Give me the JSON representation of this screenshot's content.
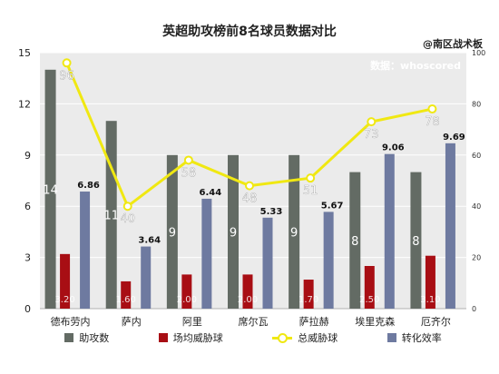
{
  "title": "英超助攻榜前8名球员数据对比",
  "watermark": "@南区战术板",
  "source_note": "数据：whoscored",
  "chart_data": {
    "type": "bar",
    "categories": [
      "德布劳内",
      "萨内",
      "阿里",
      "席尔瓦",
      "萨拉赫",
      "埃里克森",
      "厄齐尔"
    ],
    "left_axis": {
      "ylim": [
        0,
        15
      ],
      "ticks": [
        0,
        3,
        6,
        9,
        12,
        15
      ]
    },
    "right_axis": {
      "ylim": [
        0,
        100
      ],
      "ticks": [
        0,
        20,
        40,
        60,
        80,
        100
      ]
    },
    "series": [
      {
        "name": "助攻数",
        "type": "bar",
        "axis": "left",
        "color": "#636b64",
        "values": [
          14,
          11,
          9,
          9,
          9,
          8,
          8
        ],
        "labels": [
          "14",
          "11",
          "9",
          "9",
          "9",
          "8",
          "8"
        ]
      },
      {
        "name": "场均威胁球",
        "type": "bar",
        "axis": "left",
        "color": "#a80e14",
        "values": [
          3.2,
          1.6,
          2.0,
          2.0,
          1.7,
          2.5,
          3.1
        ],
        "labels": [
          "3.20",
          "1.60",
          "2.00",
          "2.00",
          "1.70",
          "2.50",
          "3.10"
        ]
      },
      {
        "name": "总威胁球",
        "type": "line",
        "axis": "right",
        "color": "#f0e812",
        "values": [
          96,
          40,
          58,
          48,
          51,
          73,
          78
        ],
        "labels": [
          "96",
          "40",
          "58",
          "48",
          "51",
          "73",
          "78"
        ]
      },
      {
        "name": "转化效率",
        "type": "bar",
        "axis": "left",
        "color": "#6e7aa0",
        "values": [
          6.86,
          3.64,
          6.44,
          5.33,
          5.67,
          9.06,
          9.69
        ],
        "labels": [
          "6.86",
          "3.64",
          "6.44",
          "5.33",
          "5.67",
          "9.06",
          "9.69"
        ]
      }
    ],
    "legend_position": "bottom",
    "grid": true
  }
}
